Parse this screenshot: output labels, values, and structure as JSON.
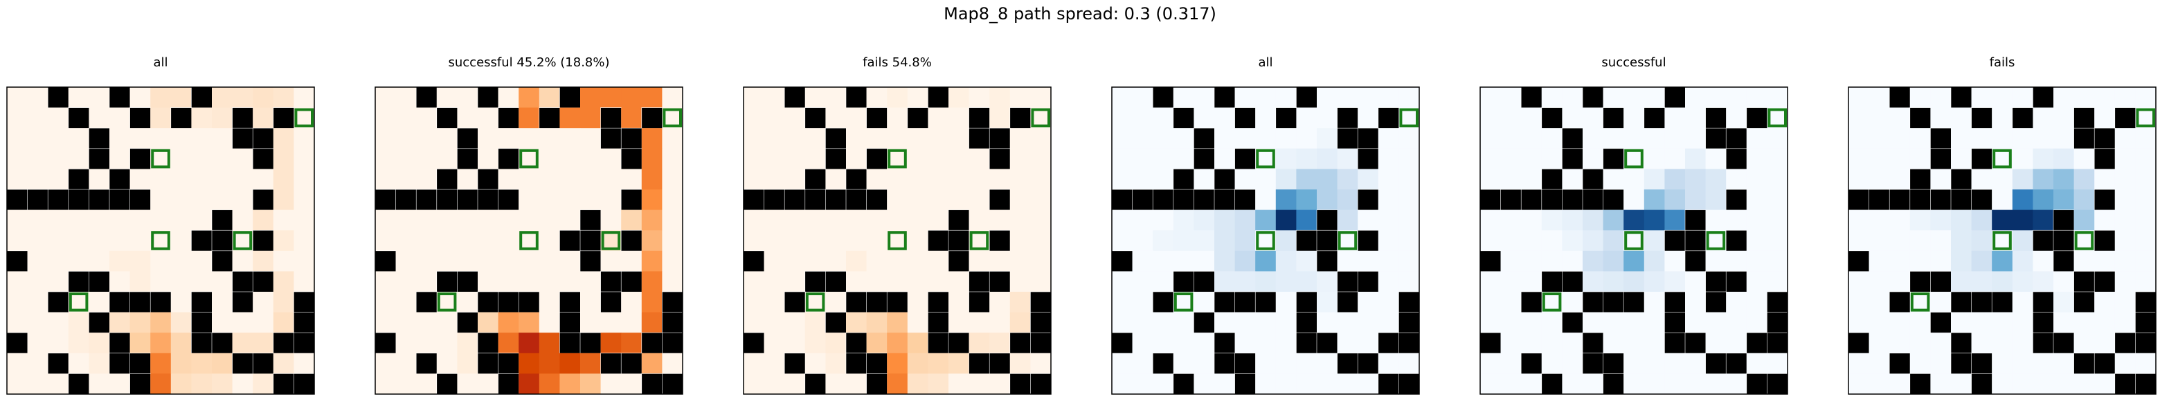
{
  "title": "Map8_8 path spread: 0.3 (0.317)",
  "chart_data": {
    "type": "heatmap",
    "grid_size": 15,
    "colors": {
      "wall": "#000000",
      "goal_outline": "#1a7f1a",
      "cell_border": "#ffffff"
    },
    "walls": [
      [
        0,
        2
      ],
      [
        0,
        5
      ],
      [
        0,
        9
      ],
      [
        1,
        3
      ],
      [
        1,
        6
      ],
      [
        1,
        8
      ],
      [
        1,
        11
      ],
      [
        1,
        13
      ],
      [
        2,
        4
      ],
      [
        2,
        11
      ],
      [
        2,
        12
      ],
      [
        3,
        4
      ],
      [
        3,
        6
      ],
      [
        3,
        12
      ],
      [
        4,
        3
      ],
      [
        4,
        5
      ],
      [
        5,
        0
      ],
      [
        5,
        1
      ],
      [
        5,
        2
      ],
      [
        5,
        3
      ],
      [
        5,
        4
      ],
      [
        5,
        5
      ],
      [
        5,
        6
      ],
      [
        5,
        12
      ],
      [
        6,
        10
      ],
      [
        7,
        9
      ],
      [
        7,
        10
      ],
      [
        7,
        12
      ],
      [
        8,
        0
      ],
      [
        8,
        10
      ],
      [
        9,
        3
      ],
      [
        9,
        4
      ],
      [
        9,
        11
      ],
      [
        9,
        12
      ],
      [
        10,
        2
      ],
      [
        10,
        5
      ],
      [
        10,
        6
      ],
      [
        10,
        7
      ],
      [
        10,
        9
      ],
      [
        10,
        11
      ],
      [
        10,
        14
      ],
      [
        11,
        4
      ],
      [
        11,
        9
      ],
      [
        11,
        14
      ],
      [
        12,
        0
      ],
      [
        12,
        5
      ],
      [
        12,
        9
      ],
      [
        12,
        10
      ],
      [
        12,
        13
      ],
      [
        12,
        14
      ],
      [
        13,
        2
      ],
      [
        13,
        5
      ],
      [
        13,
        6
      ],
      [
        13,
        11
      ],
      [
        13,
        12
      ],
      [
        14,
        3
      ],
      [
        14,
        6
      ],
      [
        14,
        13
      ],
      [
        14,
        14
      ]
    ],
    "goals": [
      [
        1,
        14
      ],
      [
        3,
        7
      ],
      [
        7,
        7
      ],
      [
        7,
        11
      ],
      [
        10,
        3
      ]
    ],
    "panels": [
      {
        "title": "all",
        "cmap": "Oranges",
        "cells": [
          [
            0,
            7,
            0.12
          ],
          [
            0,
            8,
            0.12
          ],
          [
            0,
            10,
            0.1
          ],
          [
            0,
            11,
            0.1
          ],
          [
            0,
            12,
            0.12
          ],
          [
            0,
            13,
            0.1
          ],
          [
            1,
            7,
            0.1
          ],
          [
            1,
            9,
            0.06
          ],
          [
            1,
            10,
            0.08
          ],
          [
            1,
            12,
            0.1
          ],
          [
            2,
            13,
            0.1
          ],
          [
            3,
            13,
            0.1
          ],
          [
            4,
            13,
            0.1
          ],
          [
            5,
            13,
            0.1
          ],
          [
            6,
            12,
            0.1
          ],
          [
            7,
            13,
            0.06
          ],
          [
            8,
            12,
            0.08
          ],
          [
            9,
            13,
            0.1
          ],
          [
            10,
            13,
            0.1
          ],
          [
            11,
            13,
            0.14
          ],
          [
            12,
            11,
            0.12
          ],
          [
            11,
            5,
            0.12
          ],
          [
            11,
            6,
            0.18
          ],
          [
            12,
            6,
            0.25
          ],
          [
            12,
            7,
            0.4
          ],
          [
            13,
            7,
            0.55
          ],
          [
            14,
            7,
            0.6
          ],
          [
            11,
            7,
            0.3
          ],
          [
            12,
            8,
            0.2
          ],
          [
            13,
            8,
            0.2
          ],
          [
            13,
            9,
            0.18
          ],
          [
            13,
            10,
            0.2
          ],
          [
            12,
            12,
            0.12
          ],
          [
            14,
            8,
            0.15
          ],
          [
            14,
            9,
            0.12
          ],
          [
            14,
            10,
            0.1
          ],
          [
            13,
            13,
            0.08
          ],
          [
            12,
            4,
            0.06
          ],
          [
            11,
            8,
            0.08
          ],
          [
            14,
            12,
            0.06
          ],
          [
            12,
            3,
            0.04
          ],
          [
            11,
            3,
            0.04
          ],
          [
            13,
            4,
            0.04
          ],
          [
            8,
            6,
            0.04
          ],
          [
            9,
            6,
            0.04
          ],
          [
            8,
            5,
            0.04
          ]
        ]
      },
      {
        "title": "successful 45.2% (18.8%)",
        "cmap": "Oranges",
        "cells": [
          [
            0,
            7,
            0.45
          ],
          [
            0,
            8,
            0.2
          ],
          [
            0,
            9,
            0.45
          ],
          [
            0,
            10,
            0.55
          ],
          [
            0,
            11,
            0.55
          ],
          [
            0,
            12,
            0.55
          ],
          [
            0,
            13,
            0.55
          ],
          [
            1,
            7,
            0.55
          ],
          [
            1,
            9,
            0.55
          ],
          [
            1,
            10,
            0.55
          ],
          [
            1,
            12,
            0.55
          ],
          [
            2,
            13,
            0.55
          ],
          [
            3,
            13,
            0.55
          ],
          [
            4,
            13,
            0.55
          ],
          [
            5,
            13,
            0.5
          ],
          [
            6,
            13,
            0.4
          ],
          [
            7,
            13,
            0.35
          ],
          [
            8,
            13,
            0.45
          ],
          [
            9,
            13,
            0.55
          ],
          [
            10,
            13,
            0.55
          ],
          [
            11,
            13,
            0.6
          ],
          [
            12,
            11,
            0.7
          ],
          [
            12,
            12,
            0.65
          ],
          [
            13,
            13,
            0.4
          ],
          [
            11,
            5,
            0.2
          ],
          [
            11,
            6,
            0.45
          ],
          [
            12,
            6,
            0.6
          ],
          [
            12,
            7,
            0.9
          ],
          [
            12,
            8,
            0.7
          ],
          [
            13,
            7,
            0.75
          ],
          [
            13,
            8,
            0.7
          ],
          [
            13,
            9,
            0.75
          ],
          [
            13,
            10,
            0.65
          ],
          [
            14,
            7,
            0.85
          ],
          [
            14,
            8,
            0.6
          ],
          [
            14,
            9,
            0.4
          ],
          [
            11,
            7,
            0.4
          ],
          [
            14,
            10,
            0.3
          ],
          [
            6,
            12,
            0.2
          ],
          [
            7,
            11,
            0.1
          ],
          [
            1,
            8,
            0.15
          ],
          [
            12,
            4,
            0.05
          ],
          [
            13,
            4,
            0.05
          ]
        ]
      },
      {
        "title": "fails 54.8%",
        "cmap": "Oranges",
        "cells": [
          [
            0,
            7,
            0.03
          ],
          [
            0,
            10,
            0.03
          ],
          [
            0,
            12,
            0.03
          ],
          [
            1,
            12,
            0.03
          ],
          [
            11,
            5,
            0.15
          ],
          [
            11,
            6,
            0.2
          ],
          [
            12,
            6,
            0.28
          ],
          [
            12,
            7,
            0.4
          ],
          [
            13,
            7,
            0.5
          ],
          [
            14,
            7,
            0.55
          ],
          [
            11,
            7,
            0.3
          ],
          [
            12,
            8,
            0.25
          ],
          [
            13,
            8,
            0.2
          ],
          [
            13,
            9,
            0.18
          ],
          [
            13,
            10,
            0.15
          ],
          [
            12,
            11,
            0.1
          ],
          [
            12,
            12,
            0.08
          ],
          [
            11,
            13,
            0.12
          ],
          [
            10,
            13,
            0.1
          ],
          [
            14,
            8,
            0.12
          ],
          [
            14,
            9,
            0.1
          ],
          [
            13,
            13,
            0.04
          ],
          [
            12,
            4,
            0.06
          ],
          [
            12,
            3,
            0.04
          ],
          [
            11,
            3,
            0.04
          ],
          [
            13,
            4,
            0.04
          ],
          [
            8,
            5,
            0.04
          ]
        ]
      },
      {
        "title": "all",
        "cmap": "Blues",
        "cells": [
          [
            4,
            9,
            0.3
          ],
          [
            4,
            10,
            0.3
          ],
          [
            4,
            11,
            0.2
          ],
          [
            5,
            8,
            0.6
          ],
          [
            5,
            9,
            0.5
          ],
          [
            5,
            10,
            0.3
          ],
          [
            5,
            11,
            0.25
          ],
          [
            6,
            5,
            0.15
          ],
          [
            6,
            6,
            0.2
          ],
          [
            6,
            7,
            0.45
          ],
          [
            6,
            8,
            1.0
          ],
          [
            6,
            9,
            0.7
          ],
          [
            6,
            10,
            0.5
          ],
          [
            6,
            11,
            0.2
          ],
          [
            7,
            5,
            0.15
          ],
          [
            7,
            6,
            0.2
          ],
          [
            7,
            8,
            0.15
          ],
          [
            8,
            5,
            0.15
          ],
          [
            8,
            6,
            0.25
          ],
          [
            8,
            7,
            0.5
          ],
          [
            8,
            8,
            0.1
          ],
          [
            9,
            5,
            0.1
          ],
          [
            9,
            6,
            0.1
          ],
          [
            9,
            7,
            0.12
          ],
          [
            9,
            8,
            0.1
          ],
          [
            9,
            9,
            0.1
          ],
          [
            6,
            4,
            0.08
          ],
          [
            7,
            4,
            0.05
          ],
          [
            4,
            8,
            0.12
          ],
          [
            3,
            9,
            0.08
          ],
          [
            3,
            10,
            0.1
          ],
          [
            3,
            11,
            0.06
          ],
          [
            6,
            3,
            0.05
          ],
          [
            7,
            3,
            0.05
          ],
          [
            7,
            2,
            0.04
          ],
          [
            4,
            12,
            0.08
          ],
          [
            5,
            12,
            0.08
          ],
          [
            9,
            10,
            0.06
          ],
          [
            10,
            10,
            0.05
          ],
          [
            8,
            9,
            0.06
          ],
          [
            2,
            10,
            0.04
          ],
          [
            3,
            8,
            0.06
          ]
        ]
      },
      {
        "title": "successful",
        "cmap": "Blues",
        "cells": [
          [
            4,
            9,
            0.25
          ],
          [
            4,
            10,
            0.2
          ],
          [
            4,
            11,
            0.15
          ],
          [
            5,
            8,
            0.4
          ],
          [
            5,
            9,
            0.3
          ],
          [
            5,
            10,
            0.2
          ],
          [
            5,
            11,
            0.15
          ],
          [
            6,
            5,
            0.15
          ],
          [
            6,
            6,
            0.35
          ],
          [
            6,
            7,
            0.9
          ],
          [
            6,
            8,
            0.85
          ],
          [
            6,
            9,
            0.65
          ],
          [
            6,
            10,
            0.2
          ],
          [
            7,
            5,
            0.1
          ],
          [
            7,
            6,
            0.2
          ],
          [
            7,
            8,
            0.1
          ],
          [
            8,
            5,
            0.2
          ],
          [
            8,
            6,
            0.25
          ],
          [
            8,
            7,
            0.5
          ],
          [
            8,
            8,
            0.15
          ],
          [
            9,
            5,
            0.1
          ],
          [
            9,
            6,
            0.12
          ],
          [
            9,
            7,
            0.15
          ],
          [
            9,
            8,
            0.1
          ],
          [
            6,
            4,
            0.08
          ],
          [
            6,
            3,
            0.05
          ],
          [
            4,
            8,
            0.08
          ],
          [
            3,
            10,
            0.08
          ],
          [
            7,
            4,
            0.05
          ],
          [
            9,
            9,
            0.06
          ]
        ]
      },
      {
        "title": "fails",
        "cmap": "Blues",
        "cells": [
          [
            4,
            9,
            0.35
          ],
          [
            4,
            10,
            0.4
          ],
          [
            4,
            11,
            0.25
          ],
          [
            5,
            8,
            0.7
          ],
          [
            5,
            9,
            0.55
          ],
          [
            5,
            10,
            0.45
          ],
          [
            5,
            11,
            0.3
          ],
          [
            6,
            5,
            0.12
          ],
          [
            6,
            6,
            0.2
          ],
          [
            6,
            7,
            1.0
          ],
          [
            6,
            8,
            1.0
          ],
          [
            6,
            9,
            0.95
          ],
          [
            6,
            11,
            0.35
          ],
          [
            6,
            10,
            0.2
          ],
          [
            7,
            5,
            0.12
          ],
          [
            7,
            6,
            0.15
          ],
          [
            7,
            8,
            0.15
          ],
          [
            8,
            5,
            0.12
          ],
          [
            8,
            6,
            0.2
          ],
          [
            8,
            7,
            0.5
          ],
          [
            8,
            8,
            0.1
          ],
          [
            9,
            5,
            0.1
          ],
          [
            9,
            6,
            0.1
          ],
          [
            9,
            7,
            0.12
          ],
          [
            6,
            4,
            0.08
          ],
          [
            4,
            8,
            0.15
          ],
          [
            3,
            9,
            0.08
          ],
          [
            3,
            10,
            0.1
          ],
          [
            6,
            3,
            0.05
          ],
          [
            9,
            8,
            0.08
          ],
          [
            9,
            9,
            0.06
          ],
          [
            10,
            10,
            0.04
          ]
        ]
      }
    ]
  }
}
